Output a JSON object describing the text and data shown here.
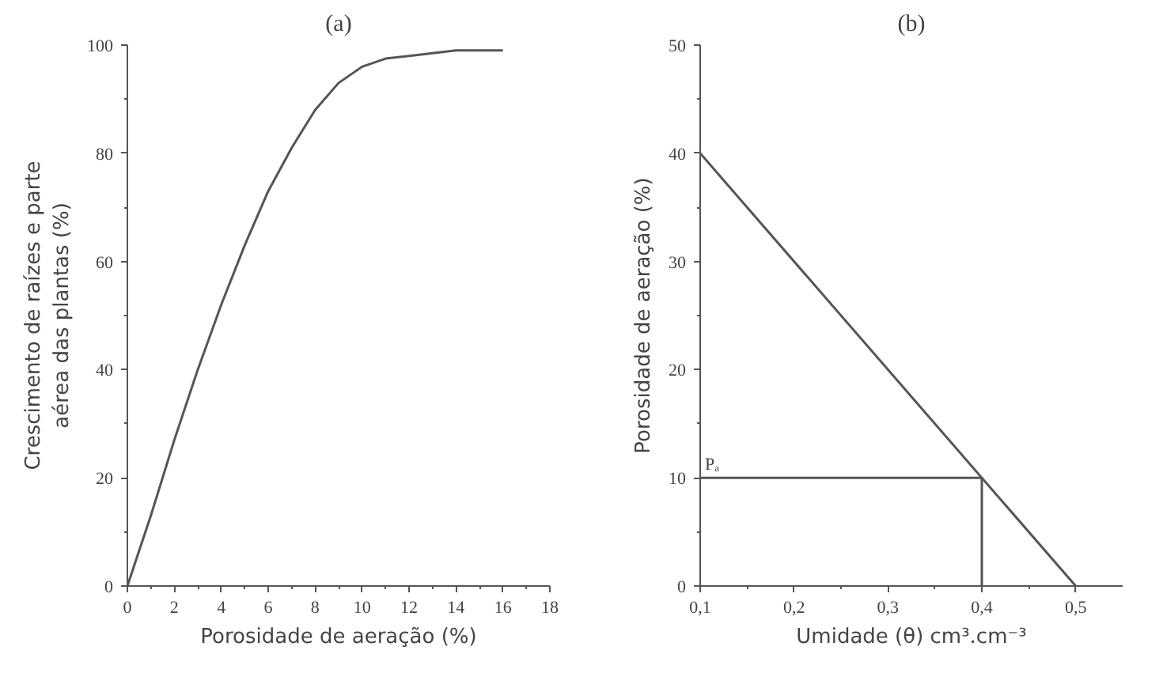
{
  "chart_data": [
    {
      "type": "line",
      "title": "(a)",
      "xlabel": "Porosidade de aeração (%)",
      "ylabel": "Crescimento de raízes e parte\naérea das plantas (%)",
      "xlim": [
        0,
        18
      ],
      "ylim": [
        0,
        100
      ],
      "xticks": [
        0,
        2,
        4,
        6,
        8,
        10,
        12,
        14,
        16,
        18
      ],
      "yticks": [
        0,
        20,
        40,
        60,
        80,
        100
      ],
      "series": [
        {
          "color": "#555555",
          "x": [
            0,
            1,
            2,
            3,
            4,
            5,
            6,
            7,
            8,
            9,
            10,
            11,
            12,
            13,
            14,
            16
          ],
          "values": [
            0,
            13,
            27,
            40,
            52,
            63,
            73,
            81,
            88,
            93,
            96,
            97.5,
            98,
            98.5,
            99,
            99
          ]
        }
      ]
    },
    {
      "type": "line",
      "title": "(b)",
      "xlabel": "Umidade (θ) cm³.cm⁻³",
      "ylabel": "Porosidade de aeração (%)",
      "xlim": [
        0.1,
        0.55
      ],
      "ylim": [
        0,
        50
      ],
      "xticks": [
        {
          "value": 0.1,
          "label": "0,1"
        },
        {
          "value": 0.2,
          "label": "0,2"
        },
        {
          "value": 0.3,
          "label": "0,3"
        },
        {
          "value": 0.4,
          "label": "0,4"
        },
        {
          "value": 0.5,
          "label": "0,5"
        }
      ],
      "yticks": [
        0,
        10,
        20,
        30,
        40,
        50
      ],
      "annotations": [
        {
          "text": "Pₐ",
          "x": 0.1,
          "y": 10
        }
      ],
      "series": [
        {
          "color": "#555555",
          "x": [
            0.1,
            0.5
          ],
          "values": [
            40,
            0
          ]
        },
        {
          "color": "#555555",
          "x": [
            0.1,
            0.4,
            0.4
          ],
          "values": [
            10,
            10,
            0
          ]
        }
      ]
    }
  ]
}
